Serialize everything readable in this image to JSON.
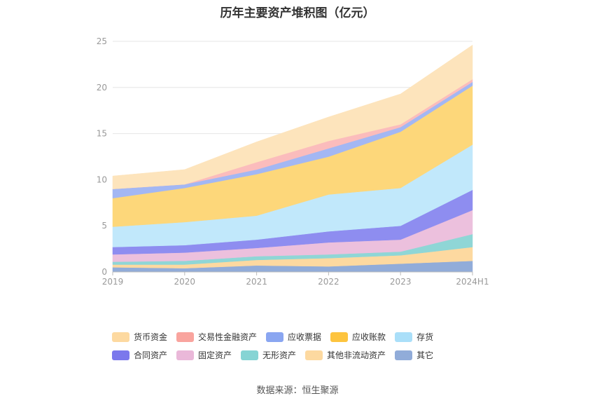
{
  "chart_data": {
    "type": "area",
    "stacked": true,
    "title": "历年主要资产堆积图（亿元）",
    "x": [
      "2019",
      "2020",
      "2021",
      "2022",
      "2023",
      "2024H1"
    ],
    "ylim": [
      0,
      25
    ],
    "yticks": [
      0,
      5,
      10,
      15,
      20,
      25
    ],
    "grid": true,
    "legend_position": "bottom",
    "series": [
      {
        "name": "其它",
        "color": "#91acd9",
        "values": [
          0.5,
          0.4,
          0.7,
          0.6,
          0.9,
          1.2
        ]
      },
      {
        "name": "其他非流动资产",
        "color": "#fdd9a0",
        "values": [
          0.3,
          0.4,
          0.6,
          0.9,
          0.9,
          1.5
        ]
      },
      {
        "name": "无形资产",
        "color": "#8fd6d6",
        "values": [
          0.3,
          0.4,
          0.4,
          0.4,
          0.4,
          1.4
        ]
      },
      {
        "name": "固定资产",
        "color": "#ecc0dd",
        "values": [
          0.8,
          0.9,
          0.9,
          1.3,
          1.3,
          2.6
        ]
      },
      {
        "name": "合同资产",
        "color": "#8e8df0",
        "values": [
          0.8,
          0.8,
          0.9,
          1.2,
          1.5,
          2.2
        ]
      },
      {
        "name": "存货",
        "color": "#c1e8fb",
        "values": [
          2.2,
          2.5,
          2.6,
          4.0,
          4.1,
          4.9
        ]
      },
      {
        "name": "应收账款",
        "color": "#fdd77a",
        "values": [
          3.1,
          3.7,
          4.5,
          4.1,
          6.1,
          6.4
        ]
      },
      {
        "name": "应收票据",
        "color": "#a3b7f3",
        "values": [
          1.0,
          0.4,
          0.5,
          0.9,
          0.5,
          0.4
        ]
      },
      {
        "name": "交易性金融资产",
        "color": "#fbbcbc",
        "values": [
          0.0,
          0.0,
          0.8,
          0.8,
          0.3,
          0.3
        ]
      },
      {
        "name": "货币资金",
        "color": "#fde4bc",
        "values": [
          1.4,
          1.6,
          2.2,
          2.6,
          3.3,
          3.7
        ]
      }
    ]
  },
  "legend": [
    {
      "name": "货币资金",
      "color": "#fdd9a0"
    },
    {
      "name": "交易性金融资产",
      "color": "#f9a49e"
    },
    {
      "name": "应收票据",
      "color": "#8aa6f1"
    },
    {
      "name": "应收账款",
      "color": "#fdc43f"
    },
    {
      "name": "存货",
      "color": "#aadff9"
    },
    {
      "name": "合同资产",
      "color": "#7b78ec"
    },
    {
      "name": "固定资产",
      "color": "#eab8d9"
    },
    {
      "name": "无形资产",
      "color": "#86d4d4"
    },
    {
      "name": "其他非流动资产",
      "color": "#fdd9a0"
    },
    {
      "name": "其它",
      "color": "#91acd9"
    }
  ],
  "source": "数据来源：恒生聚源"
}
